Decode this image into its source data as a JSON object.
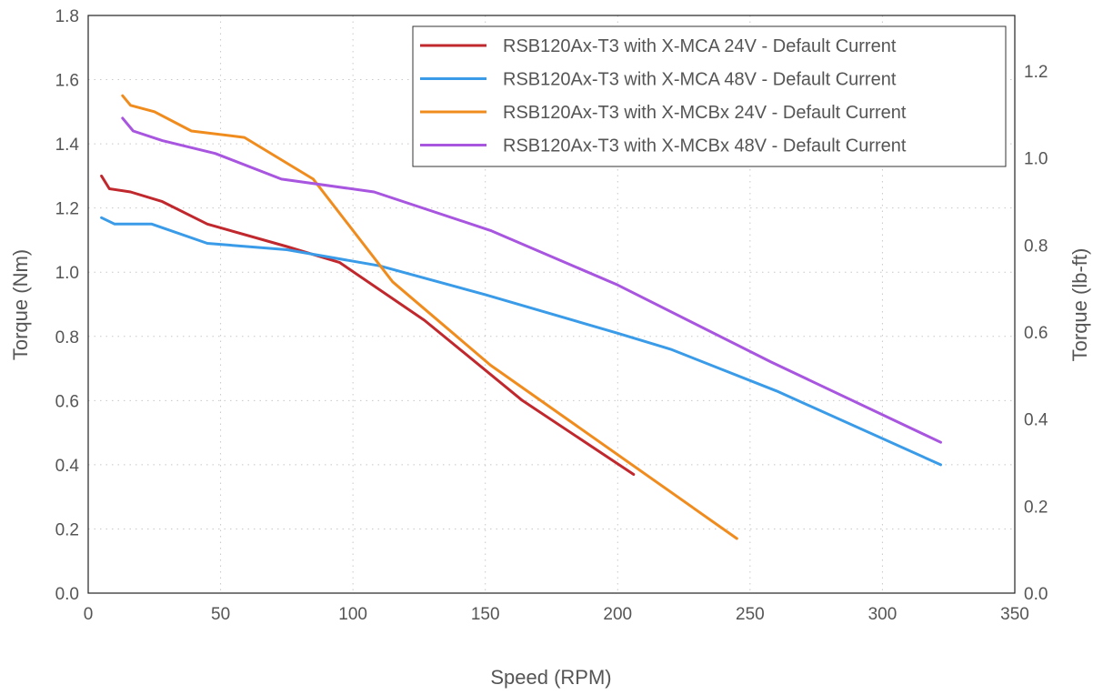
{
  "chart_data": {
    "type": "line",
    "xlabel": "Speed (RPM)",
    "ylabel": "Torque (Nm)",
    "y2label": "Torque (lb-ft)",
    "xlim": [
      0,
      350
    ],
    "ylim": [
      0,
      1.8
    ],
    "y2lim": [
      0,
      1.3276
    ],
    "xticks": [
      "0",
      "50",
      "100",
      "150",
      "200",
      "250",
      "300",
      "350"
    ],
    "yticks": [
      "0.0",
      "0.2",
      "0.4",
      "0.6",
      "0.8",
      "1.0",
      "1.2",
      "1.4",
      "1.6",
      "1.8"
    ],
    "y2ticks": [
      "0.0",
      "0.2",
      "0.4",
      "0.6",
      "0.8",
      "1.0",
      "1.2"
    ],
    "grid": true,
    "legend_position": "top-right",
    "series": [
      {
        "name": "RSB120Ax-T3 with X-MCA 24V - Default Current",
        "color": "#c0282d",
        "x": [
          5,
          8,
          16,
          28,
          45,
          75,
          95,
          127,
          164,
          206
        ],
        "y": [
          1.3,
          1.26,
          1.25,
          1.22,
          1.15,
          1.08,
          1.03,
          0.85,
          0.6,
          0.37
        ]
      },
      {
        "name": "RSB120Ax-T3 with X-MCA 48V - Default Current",
        "color": "#3a9be8",
        "x": [
          5,
          10,
          24,
          45,
          75,
          110,
          150,
          200,
          220,
          260,
          322
        ],
        "y": [
          1.17,
          1.15,
          1.15,
          1.09,
          1.07,
          1.02,
          0.93,
          0.81,
          0.76,
          0.63,
          0.4
        ]
      },
      {
        "name": "RSB120Ax-T3 with X-MCBx 24V - Default Current",
        "color": "#f08c1e",
        "x": [
          13,
          16,
          25,
          39,
          59,
          85,
          115,
          152,
          245
        ],
        "y": [
          1.55,
          1.52,
          1.5,
          1.44,
          1.42,
          1.29,
          0.97,
          0.71,
          0.17
        ]
      },
      {
        "name": "RSB120Ax-T3 with X-MCBx 48V - Default Current",
        "color": "#a855e0",
        "x": [
          13,
          17,
          28,
          48,
          73,
          108,
          152,
          200,
          258,
          322
        ],
        "y": [
          1.48,
          1.44,
          1.41,
          1.37,
          1.29,
          1.25,
          1.13,
          0.96,
          0.72,
          0.47
        ]
      }
    ]
  }
}
